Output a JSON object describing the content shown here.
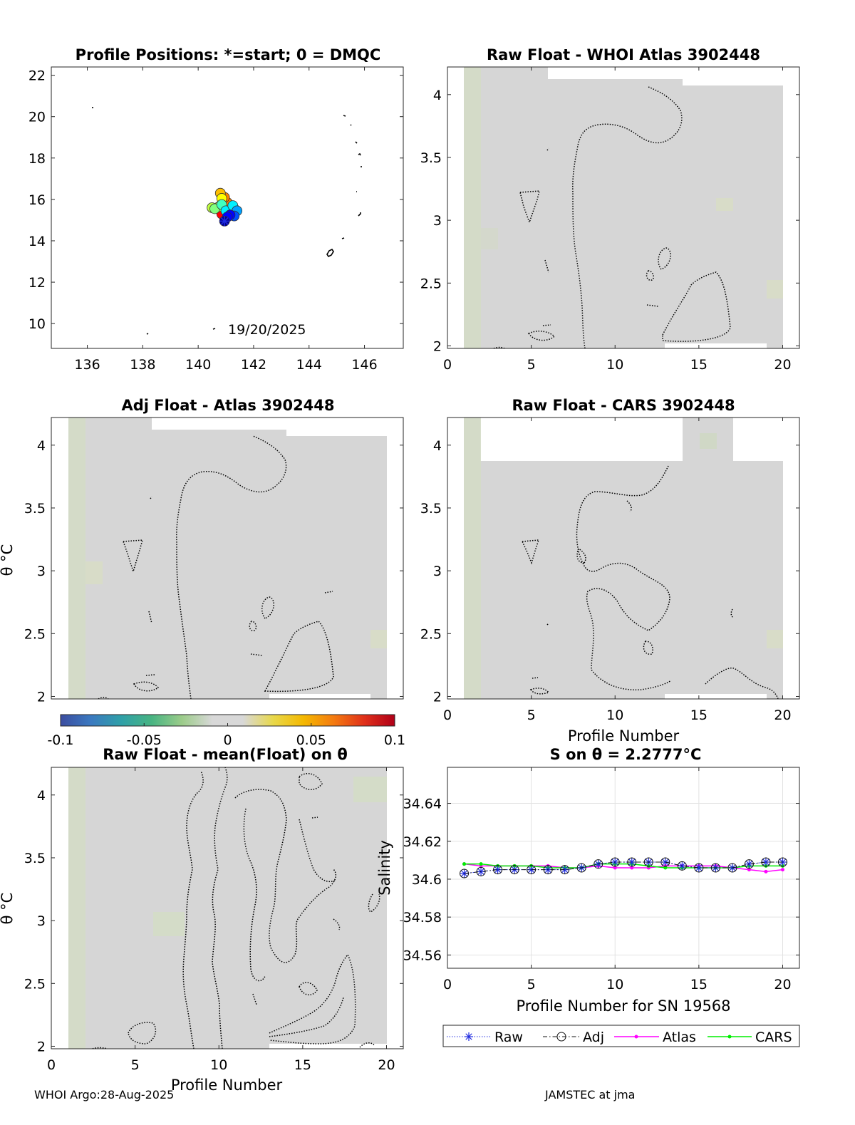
{
  "colors": {
    "anomaly_field": "#d6d6d6",
    "green_tint": "#d4dcc8",
    "raw": "#1f2be0",
    "adj": "#111111",
    "atlas": "#ff00ff",
    "cars": "#00ee00"
  },
  "panels": {
    "map": {
      "title": "Profile Positions: *=start; 0 = DMQC",
      "date_label": "19/20/2025",
      "x_ticks": [
        "136",
        "138",
        "140",
        "142",
        "144",
        "146"
      ],
      "y_ticks": [
        "10",
        "12",
        "14",
        "16",
        "18",
        "20",
        "22"
      ]
    },
    "whoi": {
      "title": "Raw Float - WHOI Atlas  3902448",
      "x_ticks": [
        "0",
        "5",
        "10",
        "15",
        "20"
      ],
      "y_ticks": [
        "2",
        "2.5",
        "3",
        "3.5",
        "4"
      ]
    },
    "adj": {
      "title": "Adj Float - Atlas  3902448",
      "ylabel": "θ °C",
      "x_ticks": [],
      "y_ticks": [
        "2",
        "2.5",
        "3",
        "3.5",
        "4"
      ]
    },
    "cars": {
      "title": "Raw Float - CARS  3902448",
      "xlabel": "Profile Number",
      "x_ticks": [
        "0",
        "5",
        "10",
        "15",
        "20"
      ],
      "y_ticks": [
        "2",
        "2.5",
        "3",
        "3.5",
        "4"
      ]
    },
    "mean": {
      "title": "Raw Float - mean(Float) on θ",
      "ylabel": "θ °C",
      "xlabel": "Profile Number",
      "x_ticks": [
        "0",
        "5",
        "10",
        "15",
        "20"
      ],
      "y_ticks": [
        "2",
        "2.5",
        "3",
        "3.5",
        "4"
      ]
    },
    "salinity": {
      "title": "S on θ = 2.2777°C",
      "ylabel": "Salinity",
      "xlabel": "Profile Number for SN 19568",
      "x_ticks": [
        "0",
        "5",
        "10",
        "15",
        "20"
      ],
      "y_ticks": [
        "34.56",
        "34.58",
        "34.6",
        "34.62",
        "34.64"
      ]
    }
  },
  "colorbar": {
    "ticks": [
      "-0.1",
      "-0.05",
      "0",
      "0.05",
      "0.1"
    ],
    "stops": [
      "#3b4da0",
      "#3b79c0",
      "#2fa0a8",
      "#48b482",
      "#9ccc8a",
      "#d8d8d8",
      "#d8d8d8",
      "#e8d84a",
      "#f4b800",
      "#f47a10",
      "#e0301a",
      "#b00018"
    ]
  },
  "legend": {
    "raw": "Raw",
    "adj": "Adj",
    "atlas": "Atlas",
    "cars": "CARS"
  },
  "footer": {
    "left": "WHOI Argo:28-Aug-2025",
    "right": "JAMSTEC at jma"
  },
  "chart_data": [
    {
      "type": "scatter",
      "title": "Profile Positions: *=start; 0 = DMQC",
      "xlim": [
        134.7,
        147.4
      ],
      "ylim": [
        8.8,
        22.4
      ],
      "points": [
        {
          "x": 140.95,
          "y": 14.95
        },
        {
          "x": 141.05,
          "y": 15.15
        },
        {
          "x": 141.15,
          "y": 15.25
        },
        {
          "x": 141.3,
          "y": 15.2
        },
        {
          "x": 141.4,
          "y": 15.45
        },
        {
          "x": 141.25,
          "y": 15.7
        },
        {
          "x": 141.0,
          "y": 15.45
        },
        {
          "x": 140.85,
          "y": 15.75
        },
        {
          "x": 140.6,
          "y": 15.55
        },
        {
          "x": 140.5,
          "y": 15.6
        },
        {
          "x": 140.75,
          "y": 15.65
        },
        {
          "x": 140.85,
          "y": 16.05
        },
        {
          "x": 140.8,
          "y": 16.3
        },
        {
          "x": 140.95,
          "y": 16.1
        },
        {
          "x": 141.05,
          "y": 15.85
        },
        {
          "x": 140.95,
          "y": 15.6
        },
        {
          "x": 140.85,
          "y": 15.3
        },
        {
          "x": 141.1,
          "y": 15.5
        },
        {
          "x": 141.2,
          "y": 15.3
        },
        {
          "x": 141.3,
          "y": 15.55
        }
      ]
    },
    {
      "type": "heatmap",
      "title": "Raw Float - WHOI Atlas  3902448",
      "xlim": [
        0,
        21
      ],
      "ylim": [
        1.98,
        4.22
      ]
    },
    {
      "type": "heatmap",
      "title": "Adj Float - Atlas  3902448",
      "xlim": [
        0,
        21
      ],
      "ylim": [
        1.98,
        4.22
      ]
    },
    {
      "type": "heatmap",
      "title": "Raw Float - CARS  3902448",
      "xlabel": "Profile Number",
      "xlim": [
        0,
        21
      ],
      "ylim": [
        1.98,
        4.22
      ]
    },
    {
      "type": "heatmap",
      "title": "Raw Float - mean(Float) on θ",
      "xlabel": "Profile Number",
      "xlim": [
        0,
        21
      ],
      "ylim": [
        1.98,
        4.22
      ]
    },
    {
      "type": "line",
      "title": "S on θ = 2.2777°C",
      "xlabel": "Profile Number for SN 19568",
      "ylabel": "Salinity",
      "xlim": [
        0,
        21
      ],
      "ylim": [
        34.553,
        34.659
      ],
      "grid": true,
      "legend": "bottom",
      "x": [
        1,
        2,
        3,
        4,
        5,
        6,
        7,
        8,
        9,
        10,
        11,
        12,
        13,
        14,
        15,
        16,
        17,
        18,
        19,
        20
      ],
      "series": [
        {
          "name": "Raw",
          "values": [
            34.603,
            34.604,
            34.605,
            34.605,
            34.605,
            34.605,
            34.605,
            34.606,
            34.608,
            34.609,
            34.609,
            34.609,
            34.609,
            34.607,
            34.606,
            34.606,
            34.606,
            34.608,
            34.609,
            34.609
          ]
        },
        {
          "name": "Adj",
          "values": [
            34.603,
            34.604,
            34.605,
            34.605,
            34.605,
            34.605,
            34.605,
            34.606,
            34.608,
            34.609,
            34.609,
            34.609,
            34.609,
            34.607,
            34.606,
            34.606,
            34.606,
            34.608,
            34.609,
            34.609
          ]
        },
        {
          "name": "Atlas",
          "values": [
            34.608,
            34.607,
            34.607,
            34.607,
            34.607,
            34.607,
            34.606,
            34.606,
            34.607,
            34.606,
            34.606,
            34.606,
            34.607,
            34.607,
            34.607,
            34.607,
            34.606,
            34.605,
            34.604,
            34.605
          ]
        },
        {
          "name": "CARS",
          "values": [
            34.608,
            34.608,
            34.607,
            34.607,
            34.607,
            34.606,
            34.606,
            34.606,
            34.608,
            34.608,
            34.608,
            34.607,
            34.606,
            34.606,
            34.606,
            34.606,
            34.606,
            34.607,
            34.607,
            34.607
          ]
        }
      ]
    }
  ]
}
